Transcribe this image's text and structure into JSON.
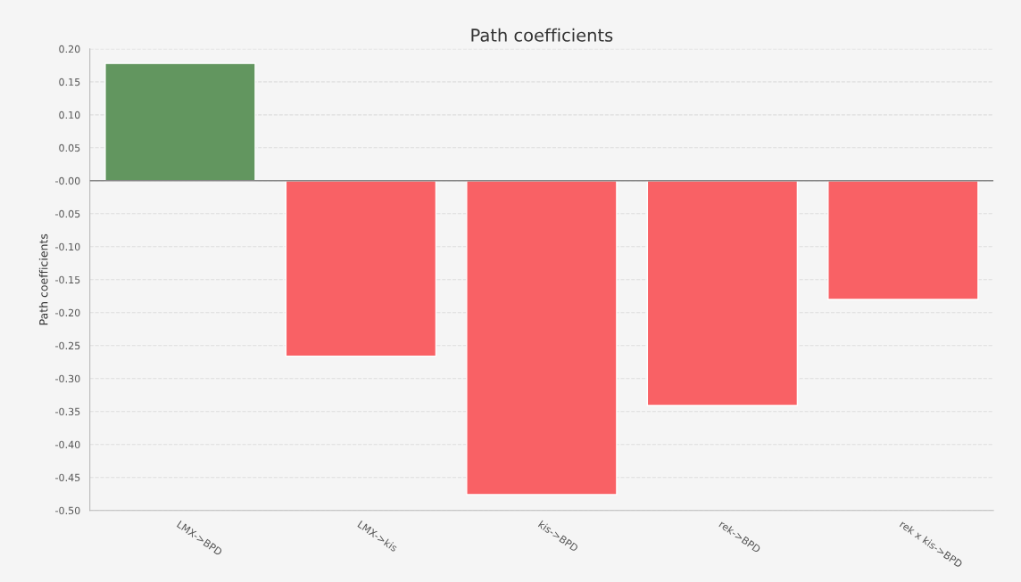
{
  "chart_data": {
    "type": "bar",
    "title": "Path coefficients",
    "ylabel": "Path coefficients",
    "categories": [
      "LMX->BPD",
      "LMX->kis",
      "kis->BPD",
      "rek->BPD",
      "rek x kis->BPD"
    ],
    "values": [
      0.178,
      -0.266,
      -0.476,
      -0.341,
      -0.18
    ],
    "colors": [
      "#62965f",
      "#f96165",
      "#f96165",
      "#f96165",
      "#f96165"
    ],
    "ylim": [
      -0.5,
      0.2
    ],
    "yticks": [
      {
        "value": -0.5,
        "label": "-0.50"
      },
      {
        "value": -0.45,
        "label": "-0.45"
      },
      {
        "value": -0.4,
        "label": "-0.40"
      },
      {
        "value": -0.35,
        "label": "-0.35"
      },
      {
        "value": -0.3,
        "label": "-0.30"
      },
      {
        "value": -0.25,
        "label": "-0.25"
      },
      {
        "value": -0.2,
        "label": "-0.20"
      },
      {
        "value": -0.15,
        "label": "-0.15"
      },
      {
        "value": -0.1,
        "label": "-0.10"
      },
      {
        "value": -0.05,
        "label": "-0.05"
      },
      {
        "value": 0,
        "label": "-0.00"
      },
      {
        "value": 0.05,
        "label": "0.05"
      },
      {
        "value": 0.1,
        "label": "0.10"
      },
      {
        "value": 0.15,
        "label": "0.15"
      },
      {
        "value": 0.2,
        "label": "0.20"
      }
    ],
    "grid": "y",
    "legend": false
  }
}
